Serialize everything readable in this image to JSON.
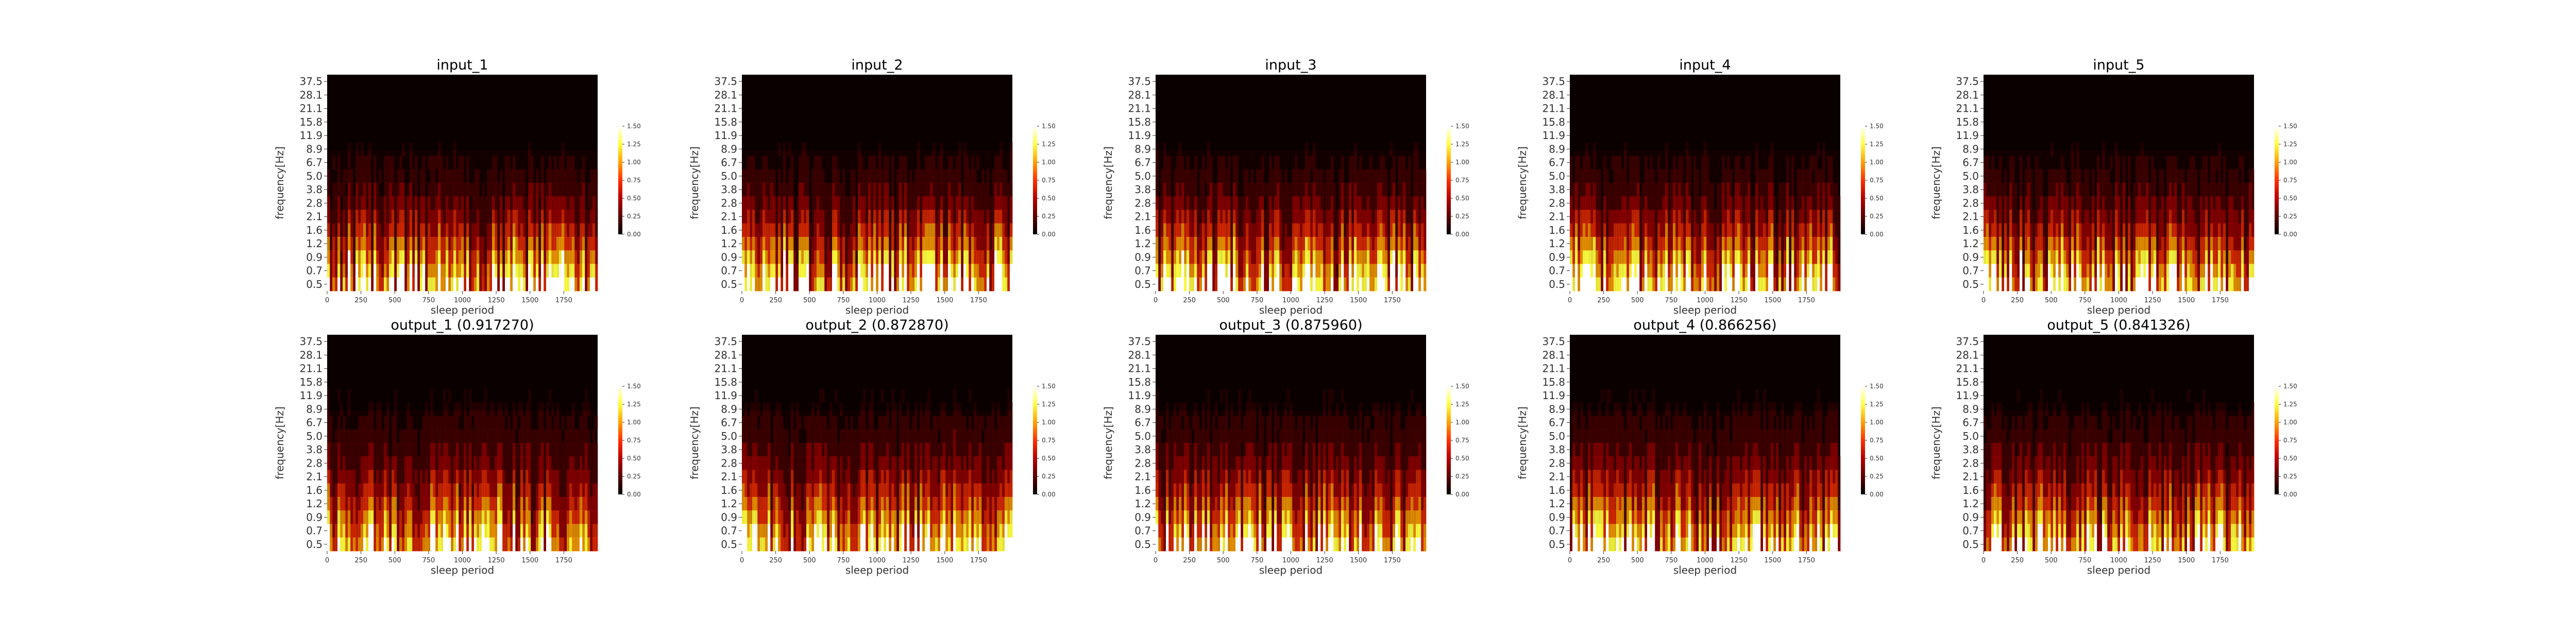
{
  "colors": {
    "colormap": [
      "#000000",
      "#5a0000",
      "#b80000",
      "#ff3000",
      "#ffa000",
      "#ffff40",
      "#ffffff"
    ],
    "background": "#ffffff"
  },
  "chart_data": [
    {
      "type": "heatmap",
      "title": "input_1",
      "xlabel": "sleep period",
      "ylabel": "frequency[Hz]",
      "xticks": [
        0,
        250,
        500,
        750,
        1000,
        1250,
        1500,
        1750
      ],
      "xlim": [
        0,
        2000
      ],
      "yticks": [
        "37.5",
        "28.1",
        "21.1",
        "15.8",
        "11.9",
        "8.9",
        "6.7",
        "5.0",
        "3.8",
        "2.8",
        "2.1",
        "1.6",
        "1.2",
        "0.9",
        "0.7",
        "0.5"
      ],
      "colorbar": {
        "ticks": [
          "1.50",
          "1.25",
          "1.00",
          "0.75",
          "0.50",
          "0.25",
          "0.00"
        ],
        "range": [
          0,
          1.5
        ]
      }
    },
    {
      "type": "heatmap",
      "title": "input_2",
      "xlabel": "sleep period",
      "ylabel": "frequency[Hz]",
      "xticks": [
        0,
        250,
        500,
        750,
        1000,
        1250,
        1500,
        1750
      ],
      "xlim": [
        0,
        2000
      ],
      "yticks": [
        "37.5",
        "28.1",
        "21.1",
        "15.8",
        "11.9",
        "8.9",
        "6.7",
        "5.0",
        "3.8",
        "2.8",
        "2.1",
        "1.6",
        "1.2",
        "0.9",
        "0.7",
        "0.5"
      ],
      "colorbar": {
        "ticks": [
          "1.50",
          "1.25",
          "1.00",
          "0.75",
          "0.50",
          "0.25",
          "0.00"
        ],
        "range": [
          0,
          1.5
        ]
      }
    },
    {
      "type": "heatmap",
      "title": "input_3",
      "xlabel": "sleep period",
      "ylabel": "frequency[Hz]",
      "xticks": [
        0,
        250,
        500,
        750,
        1000,
        1250,
        1500,
        1750
      ],
      "xlim": [
        0,
        2000
      ],
      "yticks": [
        "37.5",
        "28.1",
        "21.1",
        "15.8",
        "11.9",
        "8.9",
        "6.7",
        "5.0",
        "3.8",
        "2.8",
        "2.1",
        "1.6",
        "1.2",
        "0.9",
        "0.7",
        "0.5"
      ],
      "colorbar": {
        "ticks": [
          "1.50",
          "1.25",
          "1.00",
          "0.75",
          "0.50",
          "0.25",
          "0.00"
        ],
        "range": [
          0,
          1.5
        ]
      }
    },
    {
      "type": "heatmap",
      "title": "input_4",
      "xlabel": "sleep period",
      "ylabel": "frequency[Hz]",
      "xticks": [
        0,
        250,
        500,
        750,
        1000,
        1250,
        1500,
        1750
      ],
      "xlim": [
        0,
        2000
      ],
      "yticks": [
        "37.5",
        "28.1",
        "21.1",
        "15.8",
        "11.9",
        "8.9",
        "6.7",
        "5.0",
        "3.8",
        "2.8",
        "2.1",
        "1.6",
        "1.2",
        "0.9",
        "0.7",
        "0.5"
      ],
      "colorbar": {
        "ticks": [
          "1.50",
          "1.25",
          "1.00",
          "0.75",
          "0.50",
          "0.25",
          "0.00"
        ],
        "range": [
          0,
          1.5
        ]
      }
    },
    {
      "type": "heatmap",
      "title": "input_5",
      "xlabel": "sleep period",
      "ylabel": "frequency[Hz]",
      "xticks": [
        0,
        250,
        500,
        750,
        1000,
        1250,
        1500,
        1750
      ],
      "xlim": [
        0,
        2000
      ],
      "yticks": [
        "37.5",
        "28.1",
        "21.1",
        "15.8",
        "11.9",
        "8.9",
        "6.7",
        "5.0",
        "3.8",
        "2.8",
        "2.1",
        "1.6",
        "1.2",
        "0.9",
        "0.7",
        "0.5"
      ],
      "colorbar": {
        "ticks": [
          "1.50",
          "1.25",
          "1.00",
          "0.75",
          "0.50",
          "0.25",
          "0.00"
        ],
        "range": [
          0,
          1.5
        ]
      }
    },
    {
      "type": "heatmap",
      "title": "output_1 (0.917270)",
      "xlabel": "sleep period",
      "ylabel": "frequency[Hz]",
      "xticks": [
        0,
        250,
        500,
        750,
        1000,
        1250,
        1500,
        1750
      ],
      "xlim": [
        0,
        2000
      ],
      "yticks": [
        "37.5",
        "28.1",
        "21.1",
        "15.8",
        "11.9",
        "8.9",
        "6.7",
        "5.0",
        "3.8",
        "2.8",
        "2.1",
        "1.6",
        "1.2",
        "0.9",
        "0.7",
        "0.5"
      ],
      "colorbar": {
        "ticks": [
          "1.50",
          "1.25",
          "1.00",
          "0.75",
          "0.50",
          "0.25",
          "0.00"
        ],
        "range": [
          0,
          1.5
        ]
      }
    },
    {
      "type": "heatmap",
      "title": "output_2 (0.872870)",
      "xlabel": "sleep period",
      "ylabel": "frequency[Hz]",
      "xticks": [
        0,
        250,
        500,
        750,
        1000,
        1250,
        1500,
        1750
      ],
      "xlim": [
        0,
        2000
      ],
      "yticks": [
        "37.5",
        "28.1",
        "21.1",
        "15.8",
        "11.9",
        "8.9",
        "6.7",
        "5.0",
        "3.8",
        "2.8",
        "2.1",
        "1.6",
        "1.2",
        "0.9",
        "0.7",
        "0.5"
      ],
      "colorbar": {
        "ticks": [
          "1.50",
          "1.25",
          "1.00",
          "0.75",
          "0.50",
          "0.25",
          "0.00"
        ],
        "range": [
          0,
          1.5
        ]
      }
    },
    {
      "type": "heatmap",
      "title": "output_3 (0.875960)",
      "xlabel": "sleep period",
      "ylabel": "frequency[Hz]",
      "xticks": [
        0,
        250,
        500,
        750,
        1000,
        1250,
        1500,
        1750
      ],
      "xlim": [
        0,
        2000
      ],
      "yticks": [
        "37.5",
        "28.1",
        "21.1",
        "15.8",
        "11.9",
        "8.9",
        "6.7",
        "5.0",
        "3.8",
        "2.8",
        "2.1",
        "1.6",
        "1.2",
        "0.9",
        "0.7",
        "0.5"
      ],
      "colorbar": {
        "ticks": [
          "1.50",
          "1.25",
          "1.00",
          "0.75",
          "0.50",
          "0.25",
          "0.00"
        ],
        "range": [
          0,
          1.5
        ]
      }
    },
    {
      "type": "heatmap",
      "title": "output_4 (0.866256)",
      "xlabel": "sleep period",
      "ylabel": "frequency[Hz]",
      "xticks": [
        0,
        250,
        500,
        750,
        1000,
        1250,
        1500,
        1750
      ],
      "xlim": [
        0,
        2000
      ],
      "yticks": [
        "37.5",
        "28.1",
        "21.1",
        "15.8",
        "11.9",
        "8.9",
        "6.7",
        "5.0",
        "3.8",
        "2.8",
        "2.1",
        "1.6",
        "1.2",
        "0.9",
        "0.7",
        "0.5"
      ],
      "colorbar": {
        "ticks": [
          "1.50",
          "1.25",
          "1.00",
          "0.75",
          "0.50",
          "0.25",
          "0.00"
        ],
        "range": [
          0,
          1.5
        ]
      }
    },
    {
      "type": "heatmap",
      "title": "output_5 (0.841326)",
      "xlabel": "sleep period",
      "ylabel": "frequency[Hz]",
      "xticks": [
        0,
        250,
        500,
        750,
        1000,
        1250,
        1500,
        1750
      ],
      "xlim": [
        0,
        2000
      ],
      "yticks": [
        "37.5",
        "28.1",
        "21.1",
        "15.8",
        "11.9",
        "8.9",
        "6.7",
        "5.0",
        "3.8",
        "2.8",
        "2.1",
        "1.6",
        "1.2",
        "0.9",
        "0.7",
        "0.5"
      ],
      "colorbar": {
        "ticks": [
          "1.50",
          "1.25",
          "1.00",
          "0.75",
          "0.50",
          "0.25",
          "0.00"
        ],
        "range": [
          0,
          1.5
        ]
      }
    }
  ]
}
